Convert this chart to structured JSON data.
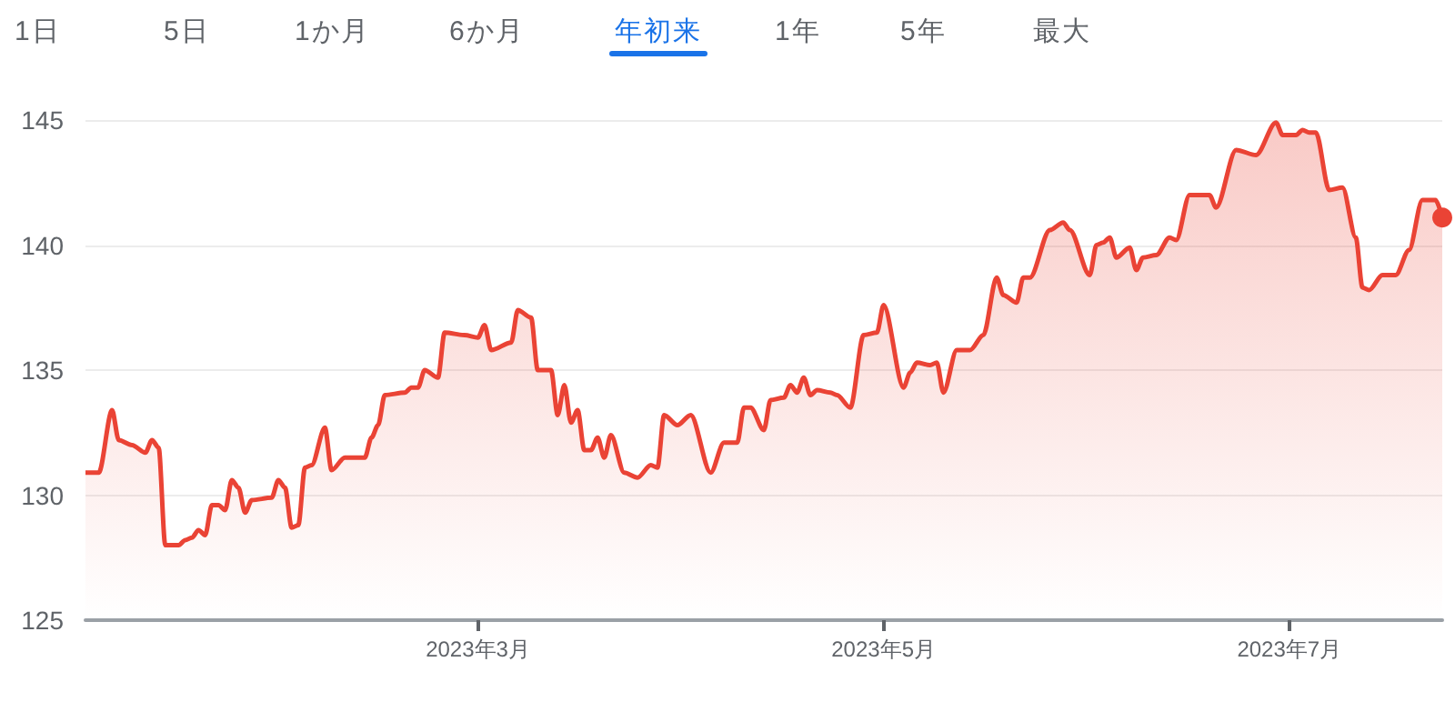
{
  "chart_data": {
    "type": "area",
    "annotations": [
      "1日",
      "5日",
      "1か月",
      "6か月",
      "年初来",
      "1年",
      "5年",
      "最大"
    ],
    "x": [
      "2023-01-01",
      "2023-01-03",
      "2023-01-05",
      "2023-01-06",
      "2023-01-08",
      "2023-01-10",
      "2023-01-11",
      "2023-01-12",
      "2023-01-13",
      "2023-01-15",
      "2023-01-16",
      "2023-01-17",
      "2023-01-18",
      "2023-01-19",
      "2023-01-20",
      "2023-01-21",
      "2023-01-22",
      "2023-01-23",
      "2023-01-24",
      "2023-01-25",
      "2023-01-26",
      "2023-01-29",
      "2023-01-30",
      "2023-01-31",
      "2023-02-01",
      "2023-02-02",
      "2023-02-03",
      "2023-02-04",
      "2023-02-06",
      "2023-02-07",
      "2023-02-09",
      "2023-02-12",
      "2023-02-13",
      "2023-02-14",
      "2023-02-15",
      "2023-02-18",
      "2023-02-19",
      "2023-02-20",
      "2023-02-21",
      "2023-02-23",
      "2023-02-24",
      "2023-02-27",
      "2023-03-01",
      "2023-03-02",
      "2023-03-03",
      "2023-03-06",
      "2023-03-07",
      "2023-03-09",
      "2023-03-10",
      "2023-03-12",
      "2023-03-13",
      "2023-03-14",
      "2023-03-15",
      "2023-03-16",
      "2023-03-17",
      "2023-03-18",
      "2023-03-19",
      "2023-03-20",
      "2023-03-21",
      "2023-03-23",
      "2023-03-25",
      "2023-03-27",
      "2023-03-28",
      "2023-03-29",
      "2023-03-31",
      "2023-04-02",
      "2023-04-05",
      "2023-04-07",
      "2023-04-09",
      "2023-04-10",
      "2023-04-11",
      "2023-04-13",
      "2023-04-14",
      "2023-04-16",
      "2023-04-17",
      "2023-04-18",
      "2023-04-19",
      "2023-04-20",
      "2023-04-21",
      "2023-04-23",
      "2023-04-24",
      "2023-04-26",
      "2023-04-28",
      "2023-04-30",
      "2023-05-01",
      "2023-05-04",
      "2023-05-05",
      "2023-05-06",
      "2023-05-08",
      "2023-05-09",
      "2023-05-10",
      "2023-05-12",
      "2023-05-14",
      "2023-05-16",
      "2023-05-18",
      "2023-05-19",
      "2023-05-21",
      "2023-05-22",
      "2023-05-23",
      "2023-05-26",
      "2023-05-28",
      "2023-05-29",
      "2023-06-01",
      "2023-06-02",
      "2023-06-03",
      "2023-06-04",
      "2023-06-05",
      "2023-06-07",
      "2023-06-08",
      "2023-06-09",
      "2023-06-11",
      "2023-06-13",
      "2023-06-14",
      "2023-06-16",
      "2023-06-19",
      "2023-06-20",
      "2023-06-23",
      "2023-06-26",
      "2023-06-29",
      "2023-06-30",
      "2023-07-02",
      "2023-07-03",
      "2023-07-04",
      "2023-07-05",
      "2023-07-07",
      "2023-07-09",
      "2023-07-11",
      "2023-07-12",
      "2023-07-13",
      "2023-07-15",
      "2023-07-17",
      "2023-07-19",
      "2023-07-21",
      "2023-07-23",
      "2023-07-24"
    ],
    "series": [
      {
        "color": "#ea4335",
        "values": [
          130.9,
          130.9,
          133.4,
          132.2,
          132.0,
          131.7,
          132.2,
          131.9,
          128.0,
          128.0,
          128.2,
          128.3,
          128.6,
          128.4,
          129.6,
          129.6,
          129.4,
          130.6,
          130.3,
          129.3,
          129.8,
          129.9,
          130.6,
          130.3,
          128.7,
          128.8,
          131.1,
          131.2,
          132.7,
          131.0,
          131.5,
          131.5,
          132.3,
          132.8,
          134.0,
          134.1,
          134.3,
          134.3,
          135.0,
          134.7,
          136.5,
          136.4,
          136.3,
          136.8,
          135.8,
          136.1,
          137.4,
          137.1,
          135.0,
          135.0,
          133.2,
          134.4,
          132.9,
          133.4,
          131.8,
          131.8,
          132.3,
          131.5,
          132.4,
          130.9,
          130.7,
          131.2,
          131.1,
          133.2,
          132.8,
          133.2,
          130.9,
          132.1,
          132.1,
          133.5,
          133.5,
          132.6,
          133.8,
          133.9,
          134.4,
          134.1,
          134.7,
          134.0,
          134.2,
          134.1,
          134.0,
          133.5,
          136.4,
          136.5,
          137.6,
          134.3,
          134.9,
          135.3,
          135.2,
          135.3,
          134.1,
          135.8,
          135.8,
          136.4,
          138.7,
          138.0,
          137.7,
          138.7,
          138.7,
          140.6,
          140.9,
          140.6,
          138.8,
          140.0,
          140.1,
          140.3,
          139.5,
          139.9,
          139.0,
          139.5,
          139.6,
          140.3,
          140.2,
          142.0,
          142.0,
          141.5,
          143.8,
          143.6,
          144.9,
          144.4,
          144.4,
          144.6,
          144.5,
          144.5,
          142.2,
          142.3,
          140.3,
          138.3,
          138.2,
          138.8,
          138.8,
          139.8,
          141.8,
          141.8,
          141.1
        ]
      }
    ],
    "xlim": [
      "2023-01-01",
      "2023-07-24"
    ],
    "xticks": [
      {
        "value": "2023-03-01",
        "label": "2023年3月"
      },
      {
        "value": "2023-05-01",
        "label": "2023年5月"
      },
      {
        "value": "2023-07-01",
        "label": "2023年7月"
      }
    ],
    "ylim": [
      125,
      145
    ],
    "yticks": [
      125,
      130,
      135,
      140,
      145
    ],
    "grid": "y"
  }
}
